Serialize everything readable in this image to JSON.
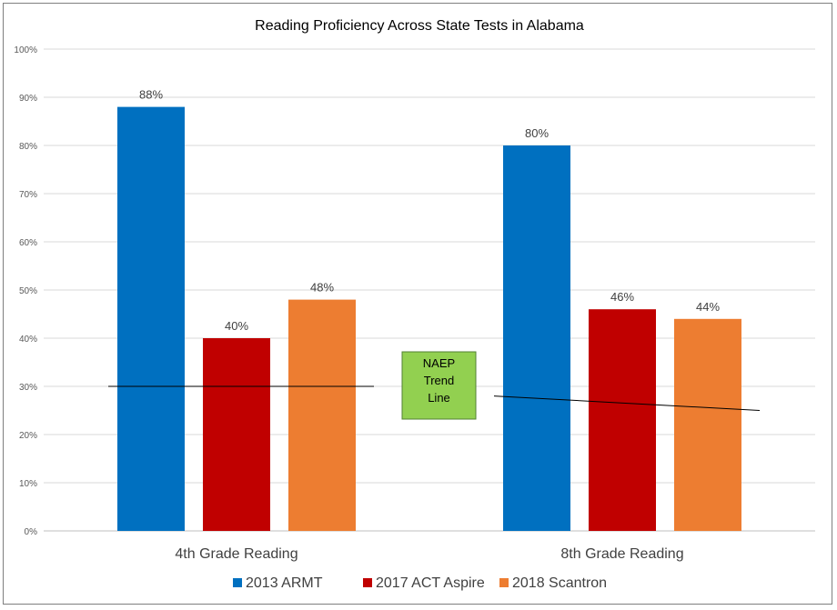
{
  "chart_data": {
    "type": "bar",
    "title": "Reading Proficiency Across State Tests in Alabama",
    "categories": [
      "4th Grade Reading",
      "8th Grade Reading"
    ],
    "series": [
      {
        "name": "2013 ARMT",
        "values": [
          88,
          80
        ],
        "color": "#0070c0"
      },
      {
        "name": "2017 ACT Aspire",
        "values": [
          40,
          46
        ],
        "color": "#c00000"
      },
      {
        "name": "2018 Scantron",
        "values": [
          48,
          44
        ],
        "color": "#ed7d31"
      }
    ],
    "data_labels": [
      [
        "88%",
        "40%",
        "48%"
      ],
      [
        "80%",
        "46%",
        "44%"
      ]
    ],
    "y_ticks": [
      "0%",
      "10%",
      "20%",
      "30%",
      "40%",
      "50%",
      "60%",
      "70%",
      "80%",
      "90%",
      "100%"
    ],
    "ylim": [
      0,
      100
    ],
    "grid": true,
    "legend_position": "bottom",
    "trend_lines": [
      {
        "category": "4th Grade Reading",
        "start": 30,
        "end": 30
      },
      {
        "category": "8th Grade Reading",
        "start": 28,
        "end": 25
      }
    ],
    "annotation": {
      "lines": [
        "NAEP",
        "Trend",
        "Line"
      ],
      "fill": "#92d050",
      "stroke": "#538135"
    }
  }
}
